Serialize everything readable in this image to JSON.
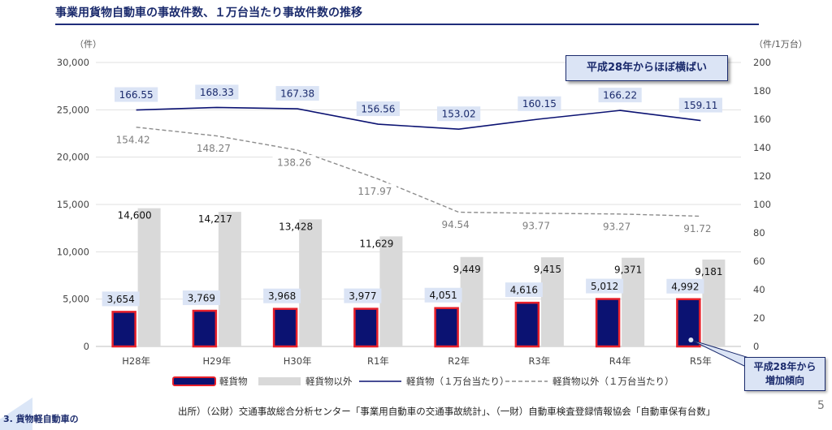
{
  "title": "事業用貨物自動車の事故件数、１万台当たり事故件数の推移",
  "left_unit": "（件）",
  "right_unit": "（件/1万台）",
  "callouts": {
    "flat": "平成28年からほぼ横ばい",
    "increase": "平成28年から増加傾向"
  },
  "source": "出所）（公財）交通事故総合分析センター「事業用自動車の交通事故統計」、（一財）自動車検査登録情報協会「自動車保有台数」",
  "page_number": "5",
  "corner_text": "3. 貨物軽自動車の",
  "colors": {
    "navy": "#0b1272",
    "red": "#e8202a",
    "gray_bar": "#d9d9d9",
    "label_bg": "#dbe4f5",
    "dash_line": "#8c8c8c"
  },
  "chart_data": {
    "type": "bar",
    "title": "事業用貨物自動車の事故件数、１万台当たり事故件数の推移",
    "categories": [
      "H28年",
      "H29年",
      "H30年",
      "R1年",
      "R2年",
      "R3年",
      "R4年",
      "R5年"
    ],
    "left_axis": {
      "label": "（件）",
      "min": 0,
      "max": 30000,
      "ticks": [
        "0",
        "5,000",
        "10,000",
        "15,000",
        "20,000",
        "25,000",
        "30,000"
      ]
    },
    "right_axis": {
      "label": "（件/1万台）",
      "min": 0,
      "max": 200,
      "ticks": [
        "0",
        "20",
        "40",
        "60",
        "80",
        "100",
        "120",
        "140",
        "160",
        "180",
        "200"
      ]
    },
    "grid": true,
    "legend_position": "bottom",
    "series": [
      {
        "name": "軽貨物",
        "kind": "bar",
        "axis": "left",
        "values": [
          3654,
          3769,
          3968,
          3977,
          4051,
          4616,
          5012,
          4992
        ],
        "labels": [
          "3,654",
          "3,769",
          "3,968",
          "3,977",
          "4,051",
          "4,616",
          "5,012",
          "4,992"
        ]
      },
      {
        "name": "軽貨物以外",
        "kind": "bar",
        "axis": "left",
        "values": [
          14600,
          14217,
          13428,
          11629,
          9449,
          9415,
          9371,
          9181
        ],
        "labels": [
          "14,600",
          "14,217",
          "13,428",
          "11,629",
          "9,449",
          "9,415",
          "9,371",
          "9,181"
        ]
      },
      {
        "name": "軽貨物（１万台当たり）",
        "kind": "line",
        "axis": "right",
        "values": [
          166.55,
          168.33,
          167.38,
          156.56,
          153.02,
          160.15,
          166.22,
          159.11
        ],
        "labels": [
          "166.55",
          "168.33",
          "167.38",
          "156.56",
          "153.02",
          "160.15",
          "166.22",
          "159.11"
        ]
      },
      {
        "name": "軽貨物以外（１万台当たり）",
        "kind": "dashed-line",
        "axis": "right",
        "values": [
          154.42,
          148.27,
          138.26,
          117.97,
          94.54,
          93.77,
          93.27,
          91.72
        ],
        "labels": [
          "154.42",
          "148.27",
          "138.26",
          "117.97",
          "94.54",
          "93.77",
          "93.27",
          "91.72"
        ]
      }
    ]
  }
}
